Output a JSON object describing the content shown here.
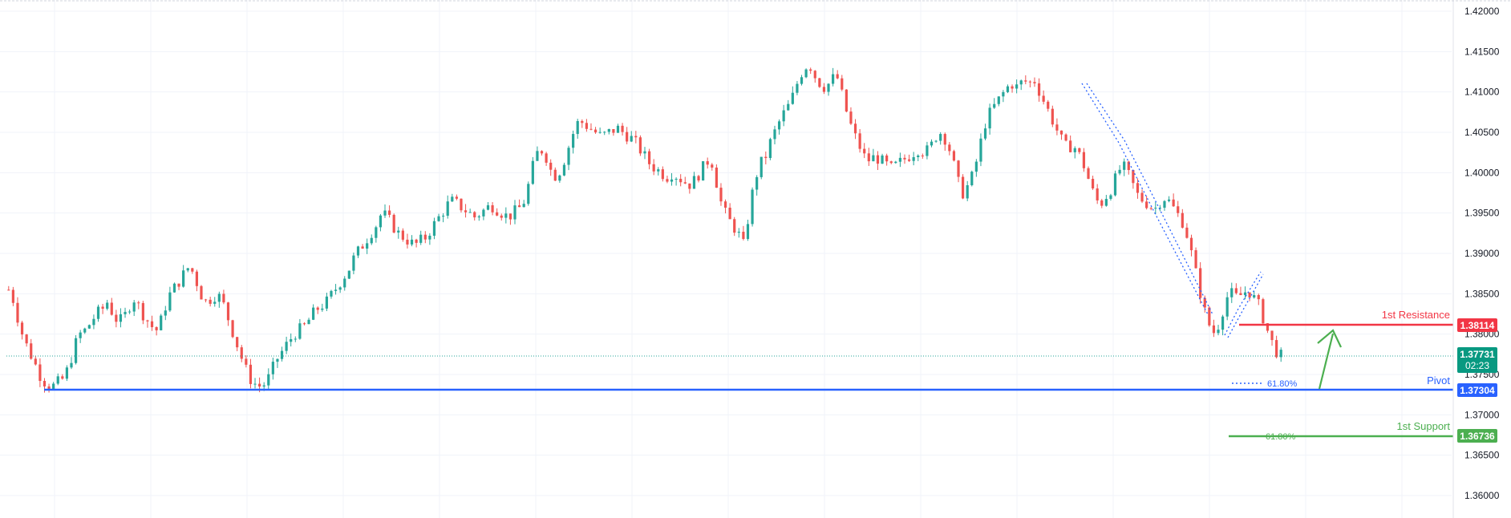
{
  "chart_data": {
    "type": "candlestick",
    "title": "",
    "xlabel": "",
    "ylabel": "",
    "ylim": [
      1.357,
      1.4205
    ],
    "grid": true,
    "y_ticks": [
      "1.42000",
      "1.41500",
      "1.41000",
      "1.40500",
      "1.40000",
      "1.39500",
      "1.39000",
      "1.38500",
      "1.38000",
      "1.37500",
      "1.37000",
      "1.36500",
      "1.36000"
    ],
    "colors": {
      "up": "#26a69a",
      "down": "#ef5350",
      "grid": "#f0f3fa",
      "axis_text": "#131722"
    },
    "price_path": [
      1.3855,
      1.384,
      1.381,
      1.379,
      1.3775,
      1.376,
      1.3745,
      1.3738,
      1.3735,
      1.374,
      1.3745,
      1.376,
      1.3785,
      1.38,
      1.3805,
      1.3815,
      1.3825,
      1.383,
      1.384,
      1.3825,
      1.3815,
      1.382,
      1.3835,
      1.3845,
      1.383,
      1.382,
      1.381,
      1.3805,
      1.382,
      1.3845,
      1.3855,
      1.3865,
      1.3875,
      1.3885,
      1.387,
      1.385,
      1.384,
      1.3845,
      1.385,
      1.384,
      1.382,
      1.38,
      1.378,
      1.376,
      1.3745,
      1.3738,
      1.3735,
      1.374,
      1.3755,
      1.377,
      1.378,
      1.379,
      1.38,
      1.3805,
      1.381,
      1.382,
      1.383,
      1.3835,
      1.384,
      1.385,
      1.386,
      1.387,
      1.388,
      1.3895,
      1.3905,
      1.3915,
      1.3925,
      1.3935,
      1.395,
      1.3945,
      1.3935,
      1.3925,
      1.392,
      1.3915,
      1.391,
      1.3915,
      1.392,
      1.393,
      1.394,
      1.395,
      1.396,
      1.3965,
      1.396,
      1.3955,
      1.395,
      1.3945,
      1.395,
      1.3955,
      1.396,
      1.3955,
      1.395,
      1.3945,
      1.395,
      1.3955,
      1.3965,
      1.399,
      1.402,
      1.403,
      1.402,
      1.4,
      1.3995,
      1.401,
      1.403,
      1.405,
      1.4065,
      1.406,
      1.4055,
      1.405,
      1.4045,
      1.4048,
      1.4052,
      1.4055,
      1.405,
      1.4045,
      1.404,
      1.403,
      1.402,
      1.401,
      1.4005,
      1.4,
      1.3995,
      1.4,
      1.3995,
      1.399,
      1.3985,
      1.399,
      1.4,
      1.401,
      1.402,
      1.399,
      1.396,
      1.3945,
      1.3935,
      1.3925,
      1.391,
      1.395,
      1.399,
      1.401,
      1.402,
      1.404,
      1.4055,
      1.407,
      1.408,
      1.4095,
      1.4115,
      1.413,
      1.4135,
      1.412,
      1.411,
      1.4105,
      1.4115,
      1.412,
      1.4095,
      1.407,
      1.405,
      1.4035,
      1.402,
      1.4015,
      1.402,
      1.4015,
      1.401,
      1.4005,
      1.401,
      1.4015,
      1.402,
      1.4025,
      1.403,
      1.4025,
      1.403,
      1.4045,
      1.405,
      1.404,
      1.402,
      1.399,
      1.3975,
      1.3985,
      1.4,
      1.403,
      1.406,
      1.4075,
      1.4085,
      1.4095,
      1.4105,
      1.411,
      1.4105,
      1.4115,
      1.411,
      1.4115,
      1.41,
      1.4085,
      1.407,
      1.4055,
      1.404,
      1.403,
      1.4035,
      1.4025,
      1.401,
      1.399,
      1.397,
      1.396,
      1.397,
      1.398,
      1.3995,
      1.401,
      1.4,
      1.3985,
      1.397,
      1.3965,
      1.396,
      1.3955,
      1.3965,
      1.397,
      1.396,
      1.395,
      1.394,
      1.392,
      1.389,
      1.386,
      1.383,
      1.381,
      1.38,
      1.382,
      1.3845,
      1.385,
      1.3845,
      1.385,
      1.3855,
      1.3845,
      1.3835,
      1.3815,
      1.3795,
      1.378,
      1.3773
    ]
  },
  "axis": {
    "price_tag_value": "1.37731",
    "price_tag_timer": "02:23",
    "hidden_tick": "1.37500"
  },
  "levels": {
    "resistance": {
      "label": "1st Resistance",
      "value": "1.38114",
      "color": "#f23645"
    },
    "pivot": {
      "label": "Pivot",
      "value": "1.37304",
      "color": "#2962ff"
    },
    "support": {
      "label": "1st Support",
      "value": "1.36736",
      "color": "#4caf50"
    }
  },
  "fib_labels": {
    "pivot_fib": "61.80%",
    "support_fib": "61.80%"
  },
  "arrow": {
    "color": "#4caf50"
  }
}
